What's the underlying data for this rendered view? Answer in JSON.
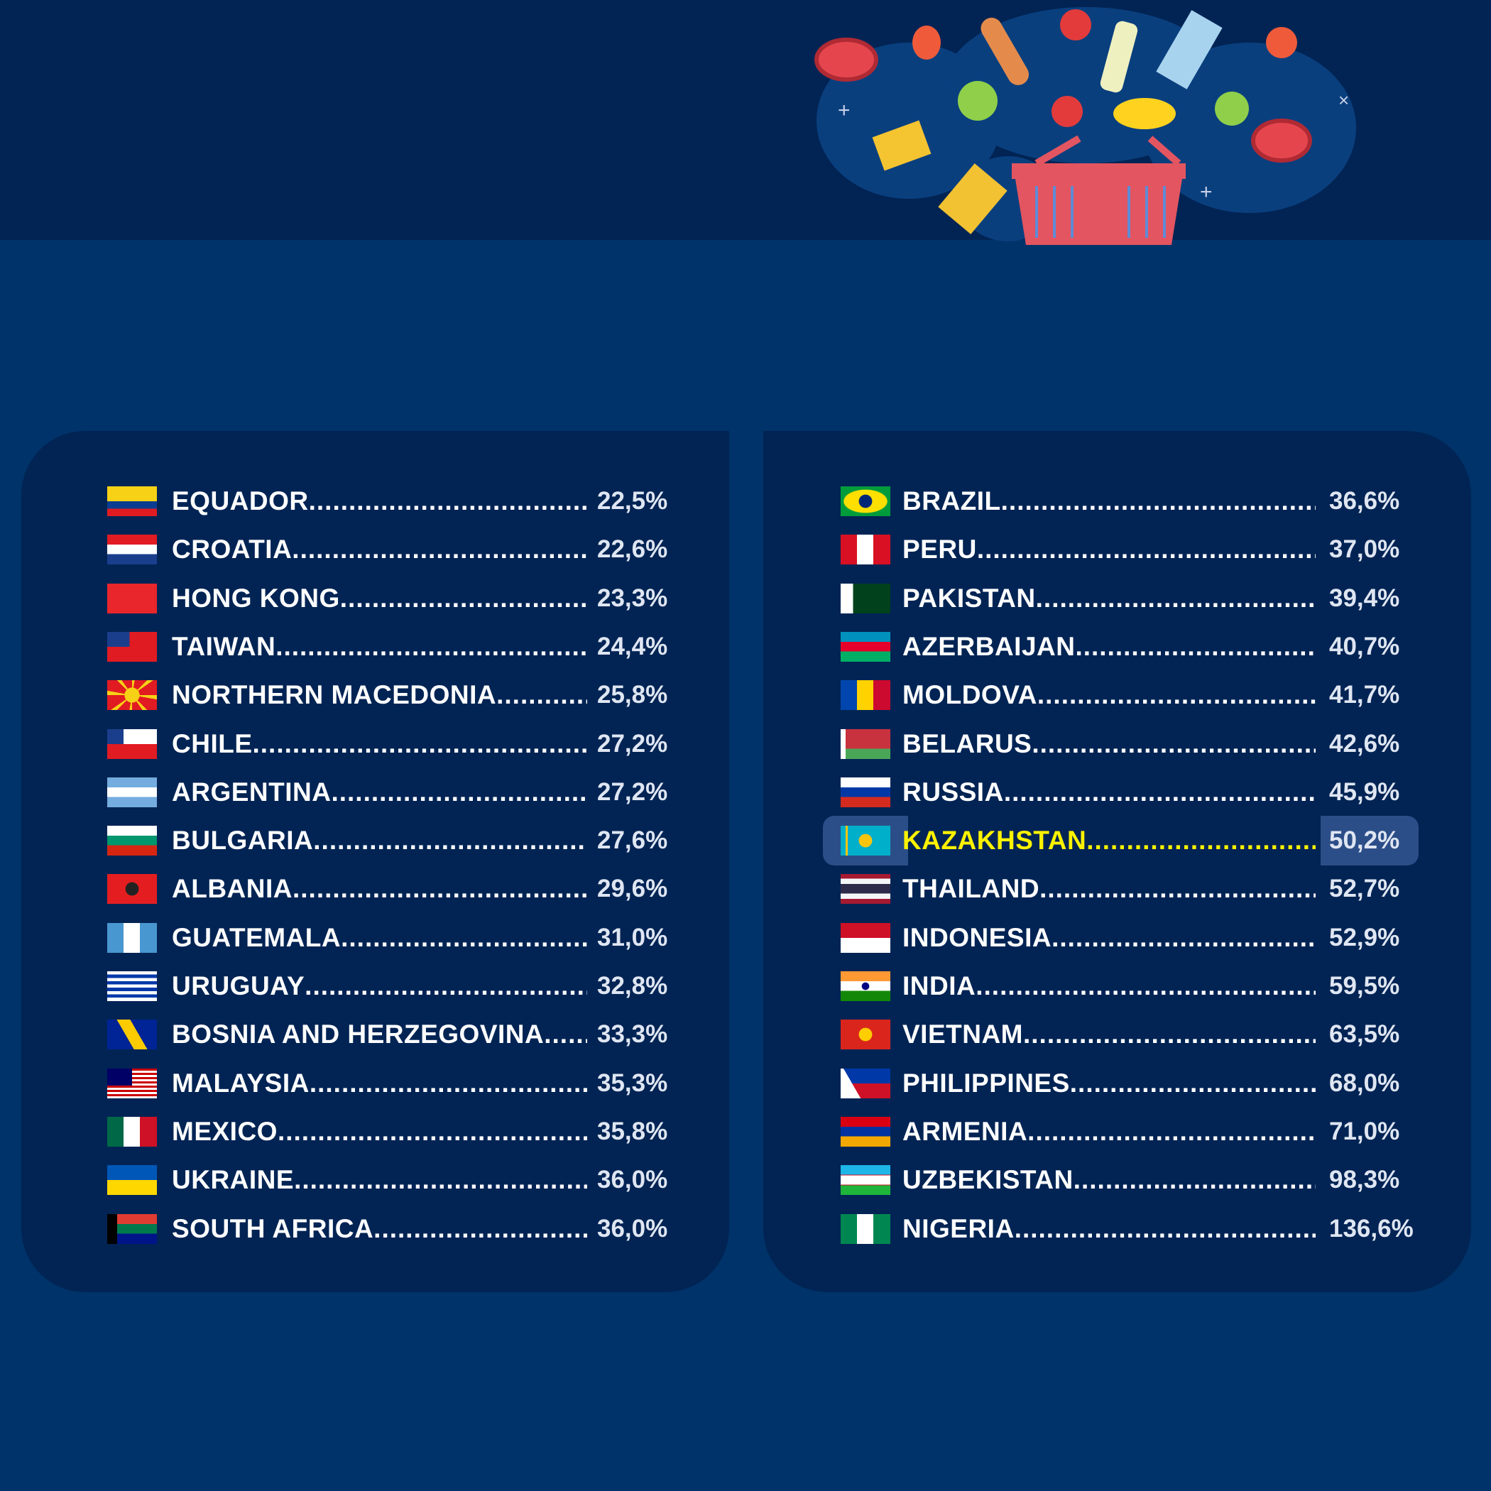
{
  "highlight_color": "#fff200",
  "left_column": [
    {
      "country": "EQUADOR",
      "value": "22,5%",
      "flag": "ecuador-flag-icon"
    },
    {
      "country": "CROATIA",
      "value": "22,6%",
      "flag": "croatia-flag-icon"
    },
    {
      "country": "HONG KONG",
      "value": "23,3%",
      "flag": "hong-kong-flag-icon"
    },
    {
      "country": "TAIWAN",
      "value": "24,4%",
      "flag": "taiwan-flag-icon"
    },
    {
      "country": "NORTHERN MACEDONIA",
      "value": "25,8%",
      "flag": "north-macedonia-flag-icon"
    },
    {
      "country": "CHILE",
      "value": "27,2%",
      "flag": "chile-flag-icon"
    },
    {
      "country": "ARGENTINA",
      "value": "27,2%",
      "flag": "argentina-flag-icon"
    },
    {
      "country": "BULGARIA",
      "value": "27,6%",
      "flag": "bulgaria-flag-icon"
    },
    {
      "country": "ALBANIA",
      "value": "29,6%",
      "flag": "albania-flag-icon"
    },
    {
      "country": "GUATEMALA",
      "value": "31,0%",
      "flag": "guatemala-flag-icon"
    },
    {
      "country": "URUGUAY",
      "value": "32,8%",
      "flag": "uruguay-flag-icon"
    },
    {
      "country": "BOSNIA AND HERZEGOVINA",
      "value": "33,3%",
      "flag": "bosnia-flag-icon"
    },
    {
      "country": "MALAYSIA",
      "value": "35,3%",
      "flag": "malaysia-flag-icon"
    },
    {
      "country": "MEXICO",
      "value": "35,8%",
      "flag": "mexico-flag-icon"
    },
    {
      "country": "UKRAINE",
      "value": "36,0%",
      "flag": "ukraine-flag-icon"
    },
    {
      "country": "SOUTH AFRICA",
      "value": "36,0%",
      "flag": "south-africa-flag-icon"
    }
  ],
  "right_column": [
    {
      "country": "BRAZIL",
      "value": "36,6%",
      "flag": "brazil-flag-icon"
    },
    {
      "country": "PERU",
      "value": "37,0%",
      "flag": "peru-flag-icon"
    },
    {
      "country": "PAKISTAN",
      "value": "39,4%",
      "flag": "pakistan-flag-icon"
    },
    {
      "country": "AZERBAIJAN",
      "value": "40,7%",
      "flag": "azerbaijan-flag-icon"
    },
    {
      "country": "MOLDOVA",
      "value": "41,7%",
      "flag": "moldova-flag-icon"
    },
    {
      "country": "BELARUS",
      "value": "42,6%",
      "flag": "belarus-flag-icon"
    },
    {
      "country": "RUSSIA",
      "value": "45,9%",
      "flag": "russia-flag-icon"
    },
    {
      "country": "KAZAKHSTAN",
      "value": "50,2%",
      "flag": "kazakhstan-flag-icon",
      "highlighted": true
    },
    {
      "country": "THAILAND",
      "value": "52,7%",
      "flag": "thailand-flag-icon"
    },
    {
      "country": "INDONESIA",
      "value": "52,9%",
      "flag": "indonesia-flag-icon"
    },
    {
      "country": "INDIA",
      "value": "59,5%",
      "flag": "india-flag-icon"
    },
    {
      "country": "VIETNAM",
      "value": "63,5%",
      "flag": "vietnam-flag-icon"
    },
    {
      "country": "PHILIPPINES",
      "value": "68,0%",
      "flag": "philippines-flag-icon"
    },
    {
      "country": "ARMENIA",
      "value": "71,0%",
      "flag": "armenia-flag-icon"
    },
    {
      "country": "UZBEKISTAN",
      "value": "98,3%",
      "flag": "uzbekistan-flag-icon"
    },
    {
      "country": "NIGERIA",
      "value": "136,6%",
      "flag": "nigeria-flag-icon"
    }
  ]
}
